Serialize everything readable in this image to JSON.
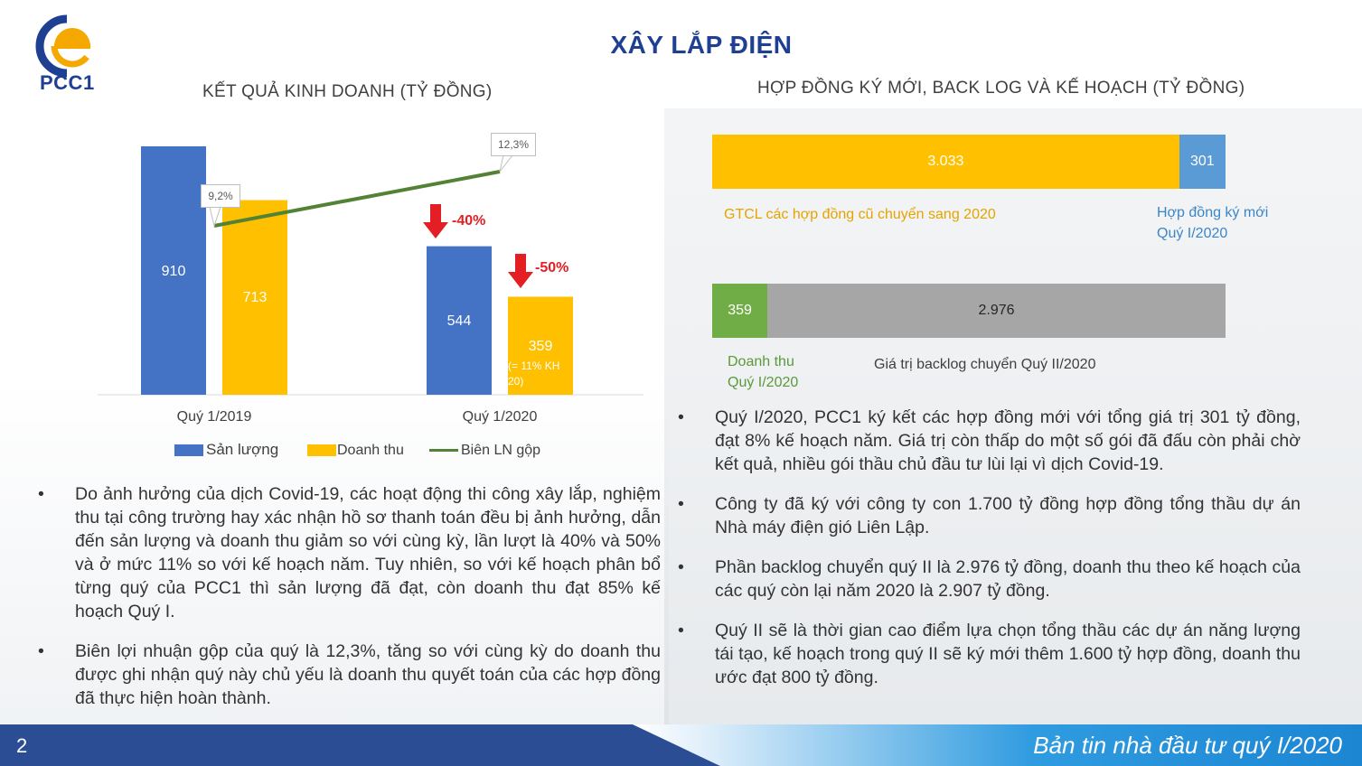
{
  "header": {
    "logo_text": "PCC1",
    "title": "XÂY LẮP ĐIỆN"
  },
  "left_chart": {
    "title": "KẾT QUẢ KINH DOANH (TỶ ĐỒNG)",
    "categories": [
      "Quý 1/2019",
      "Quý 1/2020"
    ],
    "series": [
      {
        "name": "Sản lượng",
        "values": [
          910,
          544
        ],
        "labels": [
          "910",
          "544"
        ],
        "color": "#4472c4"
      },
      {
        "name": "Doanh thu",
        "values": [
          713,
          359
        ],
        "labels": [
          "713",
          "359"
        ],
        "color": "#ffc000"
      }
    ],
    "line": {
      "name": "Biên LN gộp",
      "labels": [
        "9,2%",
        "12,3%"
      ],
      "color": "#548235"
    },
    "revenue_note": "(= 11% KH 20)",
    "changes": [
      "-40%",
      "-50%"
    ],
    "change_color": "#e31e24"
  },
  "right_chart": {
    "title": "HỢP ĐỒNG KÝ MỚI, BACK LOG VÀ KẾ HOẠCH (TỶ ĐỒNG)",
    "bar1": {
      "segments": [
        {
          "label": "3.033",
          "value": 3033,
          "color": "#ffc000"
        },
        {
          "label": "301",
          "value": 301,
          "color": "#5b9bd5"
        }
      ],
      "caption_left": "GTCL các hợp đồng cũ chuyển sang 2020",
      "caption_right_1": "Hợp đồng ký mới",
      "caption_right_2": "Quý I/2020"
    },
    "bar2": {
      "segments": [
        {
          "label": "359",
          "value": 359,
          "color": "#70ad47"
        },
        {
          "label": "2.976",
          "value": 2976,
          "color": "#a6a6a6"
        }
      ],
      "caption_left_1": "Doanh thu",
      "caption_left_2": "Quý I/2020",
      "caption_right": "Giá trị backlog chuyển Quý II/2020"
    }
  },
  "left_bullets": [
    "Do ảnh hưởng của dịch Covid-19, các hoạt động thi công xây lắp, nghiệm thu tại công trường hay xác nhận hồ sơ thanh toán đều bị ảnh hưởng, dẫn đến sản lượng và doanh thu giảm so với cùng kỳ, lần lượt là 40% và 50% và ở mức 11% so với kế hoạch năm. Tuy nhiên, so với kế hoạch phân bổ từng quý của PCC1 thì sản lượng đã đạt, còn doanh thu đạt 85% kế hoạch Quý I.",
    "Biên lợi nhuận gộp của quý là 12,3%, tăng so với cùng kỳ do doanh thu được ghi nhận quý này chủ yếu là doanh thu quyết toán của các hợp đồng đã thực hiện hoàn thành."
  ],
  "right_bullets": [
    "Quý I/2020, PCC1 ký kết các hợp đồng mới với tổng giá trị 301 tỷ đồng, đạt 8% kế hoạch năm. Giá trị còn thấp do một số gói đã đấu còn phải chờ kết quả, nhiều gói thầu chủ đầu tư lùi lại vì dịch Covid-19.",
    "Công ty đã ký với công ty con 1.700 tỷ đồng hợp đồng tổng thầu dự án Nhà máy điện gió Liên Lập.",
    "Phần backlog chuyển quý II là 2.976 tỷ đồng, doanh thu theo kế hoạch của các quý còn lại năm 2020 là 2.907 tỷ đồng.",
    "Quý II sẽ là thời gian cao điểm lựa chọn tổng thầu các dự án năng lượng tái tạo, kế hoạch trong quý II sẽ ký mới thêm 1.600 tỷ hợp đồng, doanh thu ước đạt 800 tỷ đồng."
  ],
  "bullet_char": "•",
  "footer": {
    "page": "2",
    "text": "Bản tin nhà đầu tư quý I/2020"
  }
}
